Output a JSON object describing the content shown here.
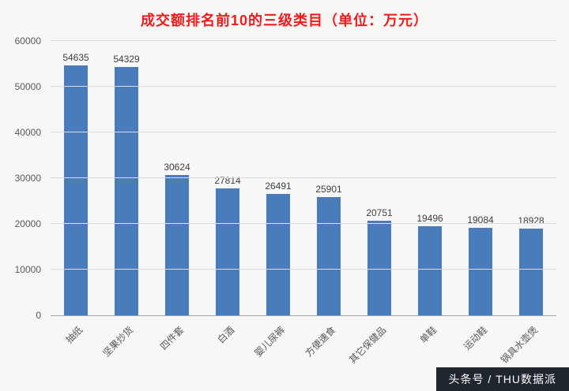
{
  "title": "成交额排名前10的三级类目（单位：万元）",
  "watermark": "头条号 / THU数据派",
  "colors": {
    "title": "#ee1c1c",
    "bar": "#4a7bba",
    "watermark_bg": "#20262e"
  },
  "chart_data": {
    "type": "bar",
    "title": "成交额排名前10的三级类目（单位：万元）",
    "categories": [
      "抽纸",
      "坚果炒货",
      "四件套",
      "白酒",
      "婴儿尿裤",
      "方便速食",
      "其它保健品",
      "单鞋",
      "运动鞋",
      "锅具水壶煲"
    ],
    "values": [
      54635,
      54329,
      30624,
      27814,
      26491,
      25901,
      20751,
      19496,
      19084,
      18928
    ],
    "xlabel": "",
    "ylabel": "",
    "ylim": [
      0,
      60000
    ],
    "ytick_step": 10000,
    "grid": true,
    "legend": "none"
  }
}
